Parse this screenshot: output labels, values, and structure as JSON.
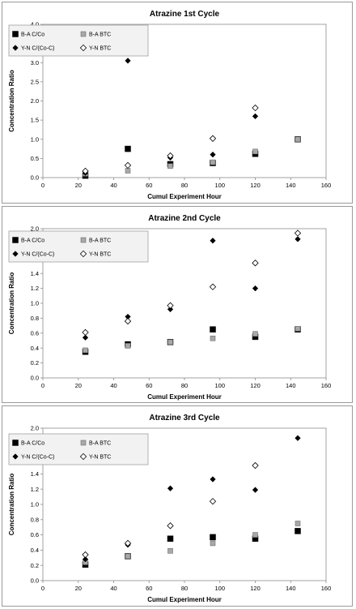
{
  "chart_data": [
    {
      "type": "scatter",
      "title": "Atrazine 1st Cycle",
      "xlabel": "Cumul Experiment Hour",
      "ylabel": "Concentration Ratio",
      "xlim": [
        0,
        160
      ],
      "ylim": [
        0,
        4.0
      ],
      "xticks": [
        "0",
        "20",
        "40",
        "60",
        "80",
        "100",
        "120",
        "140",
        "160"
      ],
      "yticks": [
        "0.0",
        "0.5",
        "1.0",
        "1.5",
        "2.0",
        "2.5",
        "3.0",
        "3.5",
        "4.0"
      ],
      "grid": false,
      "legend_placement": "top-left",
      "series": [
        {
          "name": "B-A C/Co",
          "marker": "filled-square",
          "color": "#000000",
          "x": [
            24,
            48,
            72,
            96,
            120,
            144
          ],
          "y": [
            0.05,
            0.75,
            0.35,
            0.38,
            0.62,
            1.0
          ]
        },
        {
          "name": "B-A BTC",
          "marker": "gray-square",
          "color": "#a0a0a0",
          "x": [
            24,
            48,
            72,
            96,
            120,
            144
          ],
          "y": [
            0.1,
            0.18,
            0.3,
            0.4,
            0.68,
            1.0
          ]
        },
        {
          "name": "Y-N C/(Co-C)",
          "marker": "filled-diamond",
          "color": "#000000",
          "x": [
            24,
            48,
            72,
            96,
            120
          ],
          "y": [
            0.12,
            3.05,
            0.52,
            0.6,
            1.6
          ]
        },
        {
          "name": "Y-N BTC",
          "marker": "open-diamond",
          "color": "#000000",
          "x": [
            24,
            48,
            72,
            96,
            120
          ],
          "y": [
            0.17,
            0.32,
            0.57,
            1.02,
            1.82
          ]
        }
      ]
    },
    {
      "type": "scatter",
      "title": "Atrazine 2nd Cycle",
      "xlabel": "Cumul Experiment Hour",
      "ylabel": "Concentration Ratio",
      "xlim": [
        0,
        160
      ],
      "ylim": [
        0,
        2.0
      ],
      "xticks": [
        "0",
        "20",
        "40",
        "60",
        "80",
        "100",
        "120",
        "140",
        "160"
      ],
      "yticks": [
        "0.0",
        "0.2",
        "0.4",
        "0.6",
        "0.8",
        "1.0",
        "1.2",
        "1.4",
        "1.6",
        "1.8",
        "2.0"
      ],
      "grid": false,
      "legend_placement": "top-left",
      "series": [
        {
          "name": "B-A C/Co",
          "marker": "filled-square",
          "color": "#000000",
          "x": [
            24,
            48,
            72,
            96,
            120,
            144
          ],
          "y": [
            0.35,
            0.45,
            0.48,
            0.65,
            0.55,
            0.65
          ]
        },
        {
          "name": "B-A BTC",
          "marker": "gray-square",
          "color": "#a0a0a0",
          "x": [
            24,
            48,
            72,
            96,
            120,
            144
          ],
          "y": [
            0.37,
            0.43,
            0.48,
            0.53,
            0.59,
            0.66
          ]
        },
        {
          "name": "Y-N C/(Co-C)",
          "marker": "filled-diamond",
          "color": "#000000",
          "x": [
            24,
            48,
            72,
            96,
            120,
            144
          ],
          "y": [
            0.54,
            0.82,
            0.92,
            1.84,
            1.2,
            1.86
          ]
        },
        {
          "name": "Y-N BTC",
          "marker": "open-diamond",
          "color": "#000000",
          "x": [
            24,
            48,
            72,
            96,
            120,
            144
          ],
          "y": [
            0.61,
            0.76,
            0.97,
            1.22,
            1.54,
            1.94
          ]
        }
      ]
    },
    {
      "type": "scatter",
      "title": "Atrazine 3rd Cycle",
      "xlabel": "Cumul Experiment Hour",
      "ylabel": "Concentration Ratio",
      "xlim": [
        0,
        160
      ],
      "ylim": [
        0,
        2.0
      ],
      "xticks": [
        "0",
        "20",
        "40",
        "60",
        "80",
        "100",
        "120",
        "140",
        "160"
      ],
      "yticks": [
        "0.0",
        "0.2",
        "0.4",
        "0.6",
        "0.8",
        "1.0",
        "1.2",
        "1.4",
        "1.6",
        "1.8",
        "2.0"
      ],
      "grid": false,
      "legend_placement": "top-left",
      "series": [
        {
          "name": "B-A C/Co",
          "marker": "filled-square",
          "color": "#000000",
          "x": [
            24,
            48,
            72,
            96,
            120,
            144
          ],
          "y": [
            0.21,
            0.32,
            0.55,
            0.57,
            0.55,
            0.65
          ]
        },
        {
          "name": "B-A BTC",
          "marker": "gray-square",
          "color": "#a0a0a0",
          "x": [
            24,
            48,
            72,
            96,
            120,
            144
          ],
          "y": [
            0.24,
            0.32,
            0.39,
            0.49,
            0.6,
            0.75
          ]
        },
        {
          "name": "Y-N C/(Co-C)",
          "marker": "filled-diamond",
          "color": "#000000",
          "x": [
            24,
            48,
            72,
            96,
            120,
            144
          ],
          "y": [
            0.28,
            0.47,
            1.21,
            1.33,
            1.19,
            1.87
          ]
        },
        {
          "name": "Y-N BTC",
          "marker": "open-diamond",
          "color": "#000000",
          "x": [
            24,
            48,
            72,
            96,
            120
          ],
          "y": [
            0.34,
            0.49,
            0.72,
            1.04,
            1.51
          ]
        }
      ]
    }
  ]
}
